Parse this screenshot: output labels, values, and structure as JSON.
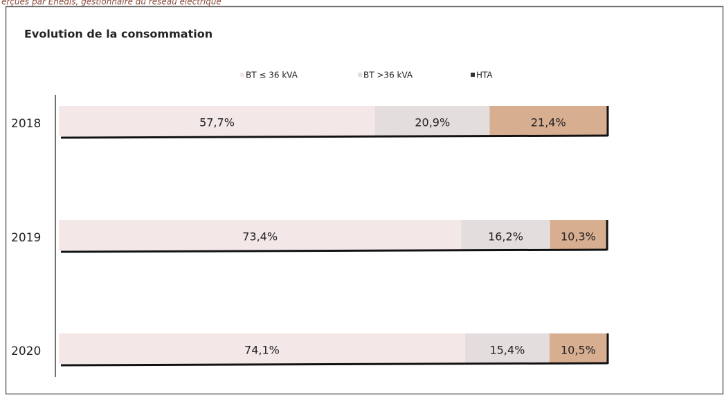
{
  "header": {
    "note": "erçues par Enedis, gestionnaire du réseau électrique"
  },
  "chart_data": {
    "type": "stacked-bar-horizontal",
    "title": "Evolution  de la consommation",
    "categories": [
      "2018",
      "2019",
      "2020"
    ],
    "xlim": [
      0,
      100
    ],
    "series": [
      {
        "name": "BT ≤ 36 kVA",
        "color": "#f3e7e8",
        "values": [
          57.7,
          73.4,
          74.1
        ],
        "value_labels": [
          "57,7%",
          "73,4%",
          "74,1%"
        ]
      },
      {
        "name": "BT >36 kVA",
        "color": "#e3dddd",
        "values": [
          20.9,
          16.2,
          15.4
        ],
        "value_labels": [
          "20,9%",
          "16,2%",
          "15,4%"
        ]
      },
      {
        "name": "HTA",
        "color": "#d8ae90",
        "values": [
          21.4,
          10.3,
          10.5
        ],
        "value_labels": [
          "21,4%",
          "10,3%",
          "10,5%"
        ]
      }
    ]
  }
}
